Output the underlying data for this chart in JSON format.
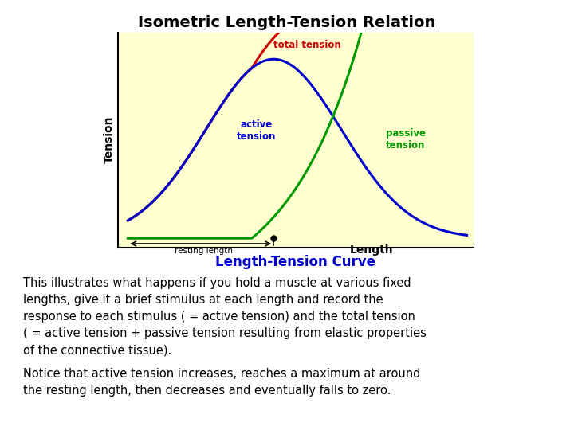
{
  "title": "Isometric Length-Tension Relation",
  "title_fontsize": 14,
  "title_fontweight": "bold",
  "background_color": "#ffffff",
  "chart_bg_color": "#ffffd0",
  "body_text_1": "This illustrates what happens if you hold a muscle at various fixed\nlengths, give it a brief stimulus at each length and record the\nresponse to each stimulus ( = active tension) and the total tension\n( = active tension + passive tension resulting from elastic properties\nof the connective tissue).",
  "body_text_2": "Notice that active tension increases, reaches a maximum at around\nthe resting length, then decreases and eventually falls to zero.",
  "body_fontsize": 10.5,
  "active_color": "#0000cc",
  "total_color": "#cc0000",
  "passive_color": "#009900",
  "subtitle": "Length-Tension Curve",
  "subtitle_color": "#0000cc",
  "ylabel": "Tension",
  "xlabel": "Length",
  "resting_label": "resting length",
  "total_label": "total tension",
  "active_label": "active\ntension",
  "passive_label": "passive\ntension"
}
